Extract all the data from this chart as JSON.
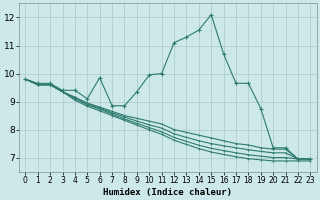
{
  "title": "",
  "xlabel": "Humidex (Indice chaleur)",
  "xlim": [
    -0.5,
    23.5
  ],
  "ylim": [
    6.5,
    12.5
  ],
  "yticks": [
    7,
    8,
    9,
    10,
    11,
    12
  ],
  "xticks": [
    0,
    1,
    2,
    3,
    4,
    5,
    6,
    7,
    8,
    9,
    10,
    11,
    12,
    13,
    14,
    15,
    16,
    17,
    18,
    19,
    20,
    21,
    22,
    23
  ],
  "bg_color": "#cce8e8",
  "grid_color": "#b0cccc",
  "line_color": "#2e7b6e",
  "lines": [
    {
      "x": [
        0,
        1,
        2,
        3,
        4,
        5,
        6,
        7,
        8,
        9,
        10,
        11,
        12,
        13,
        14,
        15,
        16,
        17,
        18,
        19,
        20,
        21,
        22,
        23
      ],
      "y": [
        9.8,
        9.65,
        9.65,
        9.4,
        9.4,
        9.1,
        9.85,
        8.85,
        8.85,
        9.35,
        9.95,
        10.0,
        11.1,
        11.3,
        11.55,
        12.1,
        10.7,
        9.65,
        9.65,
        8.75,
        7.35,
        7.35,
        6.95,
        6.95
      ],
      "markers": true
    },
    {
      "x": [
        0,
        1,
        2,
        3,
        4,
        5,
        6,
        7,
        8,
        9,
        10,
        11,
        12,
        13,
        14,
        15,
        16,
        17,
        18,
        19,
        20,
        21,
        22,
        23
      ],
      "y": [
        9.8,
        9.6,
        9.6,
        9.35,
        9.15,
        8.95,
        8.8,
        8.65,
        8.5,
        8.4,
        8.3,
        8.2,
        8.0,
        7.9,
        7.8,
        7.7,
        7.6,
        7.5,
        7.45,
        7.35,
        7.3,
        7.3,
        6.95,
        6.95
      ],
      "markers": false
    },
    {
      "x": [
        0,
        1,
        2,
        3,
        4,
        5,
        6,
        7,
        8,
        9,
        10,
        11,
        12,
        13,
        14,
        15,
        16,
        17,
        18,
        19,
        20,
        21,
        22,
        23
      ],
      "y": [
        9.8,
        9.6,
        9.6,
        9.35,
        9.15,
        8.92,
        8.77,
        8.6,
        8.45,
        8.3,
        8.17,
        8.05,
        7.85,
        7.72,
        7.6,
        7.5,
        7.42,
        7.35,
        7.28,
        7.22,
        7.17,
        7.17,
        6.95,
        6.95
      ],
      "markers": false
    },
    {
      "x": [
        0,
        1,
        2,
        3,
        4,
        5,
        6,
        7,
        8,
        9,
        10,
        11,
        12,
        13,
        14,
        15,
        16,
        17,
        18,
        19,
        20,
        21,
        22,
        23
      ],
      "y": [
        9.8,
        9.6,
        9.6,
        9.35,
        9.1,
        8.88,
        8.73,
        8.55,
        8.38,
        8.22,
        8.07,
        7.92,
        7.72,
        7.58,
        7.44,
        7.33,
        7.25,
        7.17,
        7.1,
        7.05,
        7.0,
        7.0,
        6.95,
        6.95
      ],
      "markers": false
    },
    {
      "x": [
        0,
        1,
        2,
        3,
        4,
        5,
        6,
        7,
        8,
        9,
        10,
        11,
        12,
        13,
        14,
        15,
        16,
        17,
        18,
        19,
        20,
        21,
        22,
        23
      ],
      "y": [
        9.8,
        9.6,
        9.6,
        9.35,
        9.05,
        8.83,
        8.67,
        8.5,
        8.33,
        8.16,
        7.99,
        7.83,
        7.62,
        7.47,
        7.32,
        7.2,
        7.11,
        7.03,
        6.96,
        6.92,
        6.88,
        6.88,
        6.88,
        6.88
      ],
      "markers": false
    }
  ]
}
